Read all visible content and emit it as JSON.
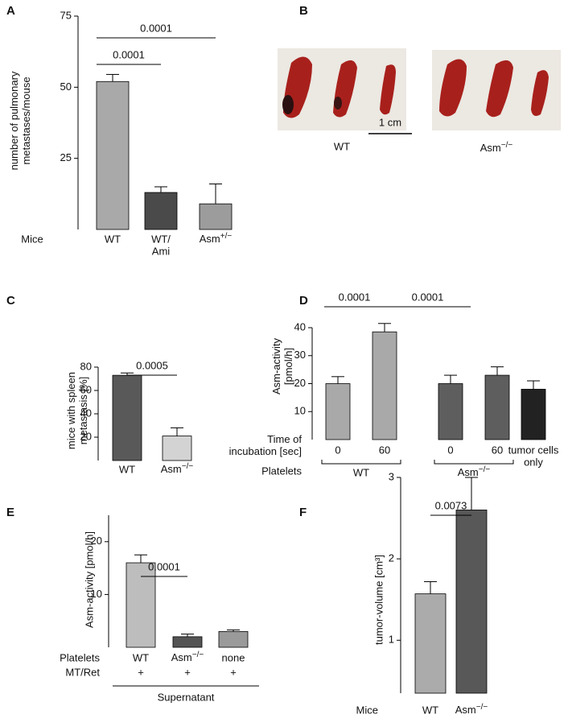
{
  "chart_data": [
    {
      "type": "bar",
      "label": "A",
      "ylabel": [
        "number of pulmonary",
        "metastases/mouse"
      ],
      "x_row_label": "Mice",
      "categories": [
        "WT",
        [
          "WT/",
          "Ami"
        ],
        "Asm+/−"
      ],
      "values": [
        52,
        13,
        9
      ],
      "errors": [
        2.5,
        2,
        7
      ],
      "colors": [
        "#a9a9a9",
        "#4a4a4a",
        "#9c9c9c"
      ],
      "ylim": [
        0,
        75
      ],
      "yticks": [
        25,
        50,
        75
      ],
      "comparisons": [
        "0.0001",
        "0.0001"
      ]
    },
    {
      "type": "bar",
      "label": "C",
      "ylabel": [
        "mice with spleen",
        "metastasis [%]"
      ],
      "categories": [
        "WT",
        "Asm−/−"
      ],
      "values": [
        73,
        21
      ],
      "errors": [
        2,
        7
      ],
      "colors": [
        "#595959",
        "#d3d3d3"
      ],
      "ylim": [
        0,
        80
      ],
      "yticks": [
        20,
        40,
        60,
        80
      ],
      "comparisons": [
        "0.0005"
      ]
    },
    {
      "type": "bar",
      "label": "D",
      "ylabel": [
        "Asm-activity",
        "[pmol/h]"
      ],
      "x_row_label": [
        "Time of",
        "incubation [sec]"
      ],
      "categories": [
        "0",
        "60",
        "0",
        "60",
        [
          "tumor cells",
          "only"
        ]
      ],
      "values": [
        20,
        38.5,
        20,
        23,
        18
      ],
      "errors": [
        2.5,
        3,
        3,
        3,
        3
      ],
      "colors": [
        "#a9a9a9",
        "#a9a9a9",
        "#5e5e5e",
        "#5e5e5e",
        "#222222"
      ],
      "groups": {
        "name": "Platelets",
        "labels": [
          "WT",
          "Asm−/−"
        ]
      },
      "ylim": [
        0,
        40
      ],
      "yticks": [
        10,
        20,
        30,
        40
      ],
      "comparisons": [
        "0.0001",
        "0.0001"
      ]
    },
    {
      "type": "bar",
      "label": "E",
      "ylabel": "Asm-activity [pmol/h]",
      "x_row_label": "Platelets",
      "categories": [
        "WT",
        "Asm−/−",
        "none"
      ],
      "values": [
        16,
        2,
        3
      ],
      "errors": [
        1.5,
        0.5,
        0.3
      ],
      "colors": [
        "#bdbdbd",
        "#555555",
        "#9a9a9a"
      ],
      "second_row": {
        "name": "MT/Ret",
        "labels": [
          "+",
          "+",
          "+"
        ]
      },
      "footer": "Supernatant",
      "ylim": [
        0,
        25
      ],
      "yticks": [
        10,
        20
      ],
      "comparisons": [
        "0.0001"
      ]
    },
    {
      "type": "bar",
      "label": "F",
      "ylabel": "tumor-volume [cm³]",
      "x_row_label": "Mice",
      "categories": [
        "WT",
        "Asm−/−"
      ],
      "values": [
        1.57,
        2.6
      ],
      "errors": [
        0.15,
        0.4
      ],
      "colors": [
        "#ababab",
        "#585858"
      ],
      "ylim": [
        0.35,
        3
      ],
      "yticks": [
        1,
        2,
        3
      ],
      "comparisons": [
        "0.0073"
      ]
    }
  ],
  "image_panel": {
    "label": "B",
    "captions": [
      "WT",
      "Asm−/−"
    ],
    "scale_bar": "1 cm"
  }
}
